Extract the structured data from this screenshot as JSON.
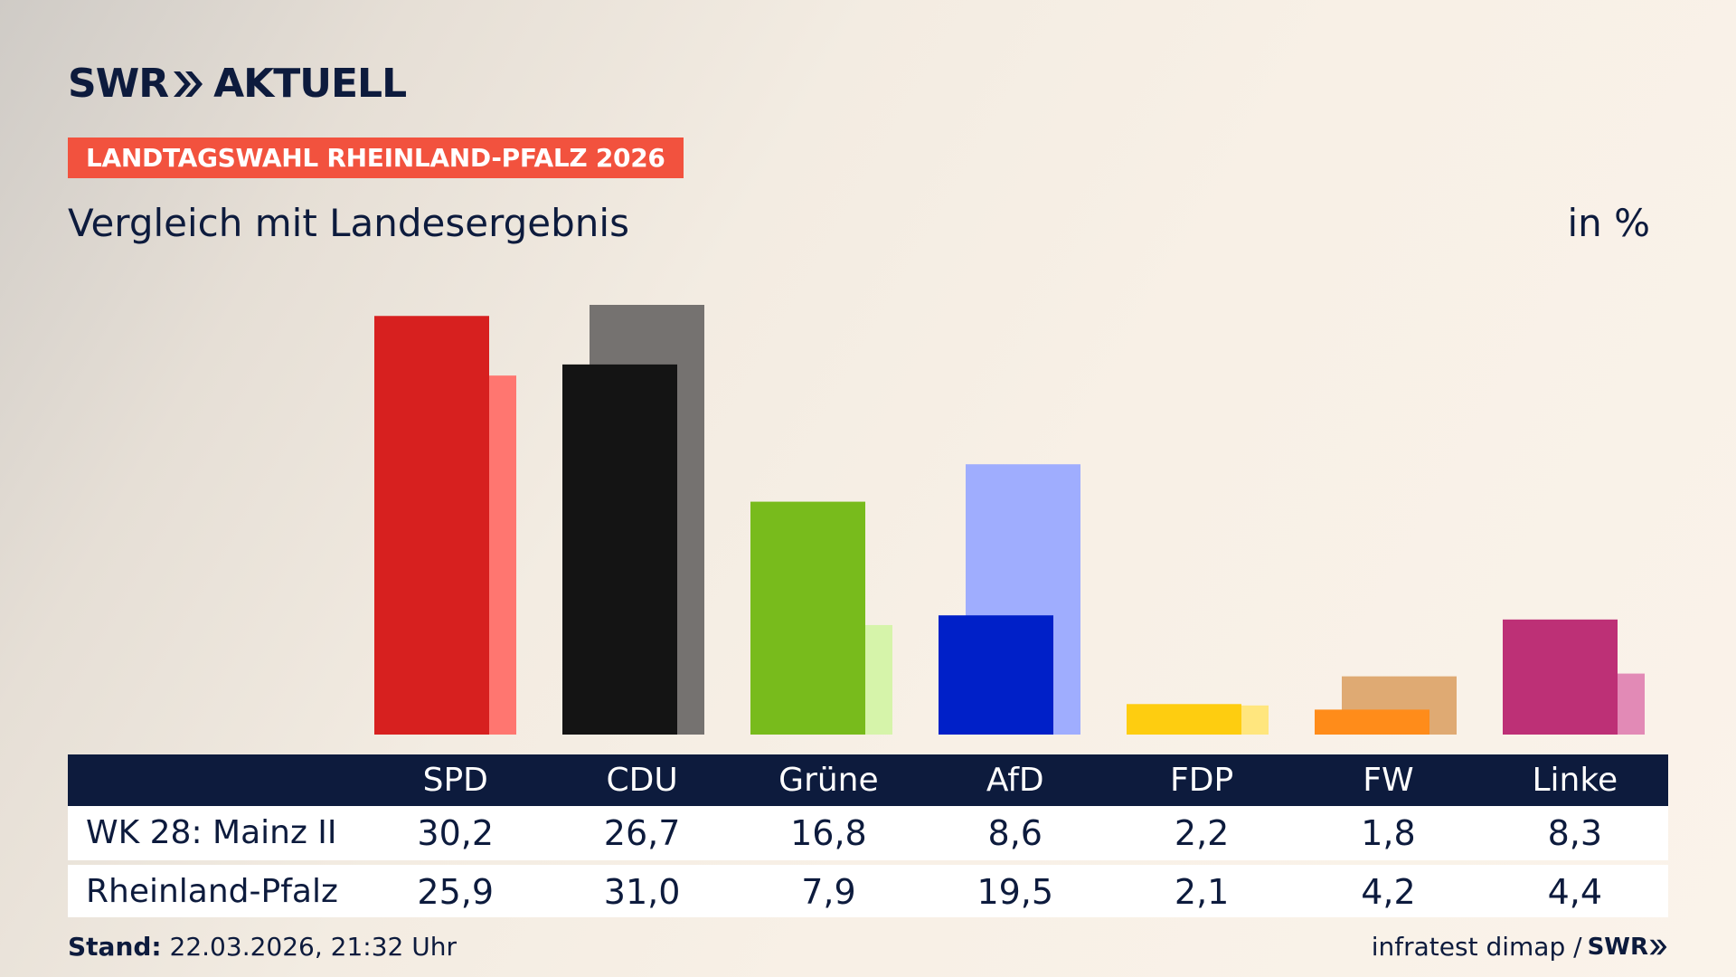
{
  "logo": {
    "brand": "SWR",
    "product": "AKTUELL"
  },
  "banner": "LANDTAGSWAHL RHEINLAND-PFALZ 2026",
  "subtitle": "Vergleich mit Landesergebnis",
  "unit": "in %",
  "footer": {
    "stand_label": "Stand:",
    "stand_value": "22.03.2026, 21:32 Uhr",
    "source": "infratest dimap /",
    "source_logo": "SWR"
  },
  "table": {
    "rows": [
      {
        "label": "WK 28: Mainz II",
        "values": [
          "30,2",
          "26,7",
          "16,8",
          "8,6",
          "2,2",
          "1,8",
          "8,3"
        ]
      },
      {
        "label": "Rheinland-Pfalz",
        "values": [
          "25,9",
          "31,0",
          "7,9",
          "19,5",
          "2,1",
          "4,2",
          "4,4"
        ]
      }
    ]
  },
  "chart_data": {
    "type": "bar",
    "categories": [
      "SPD",
      "CDU",
      "Grüne",
      "AfD",
      "FDP",
      "FW",
      "Linke"
    ],
    "series": [
      {
        "name": "WK 28: Mainz II",
        "values": [
          30.2,
          26.7,
          16.8,
          8.6,
          2.2,
          1.8,
          8.3
        ]
      },
      {
        "name": "Rheinland-Pfalz",
        "values": [
          25.9,
          31.0,
          7.9,
          19.5,
          2.1,
          4.2,
          4.4
        ]
      }
    ],
    "colors_primary": [
      "#d7201f",
      "#141414",
      "#78bb1c",
      "#0020c8",
      "#fecd10",
      "#ff8c1a",
      "#bd3076"
    ],
    "colors_secondary": [
      "#ff7670",
      "#757270",
      "#d6f4aa",
      "#9fadfe",
      "#ffe67e",
      "#dfaa73",
      "#e28ab6"
    ],
    "ylim": [
      0,
      31
    ],
    "grid": false,
    "legend": "none"
  }
}
